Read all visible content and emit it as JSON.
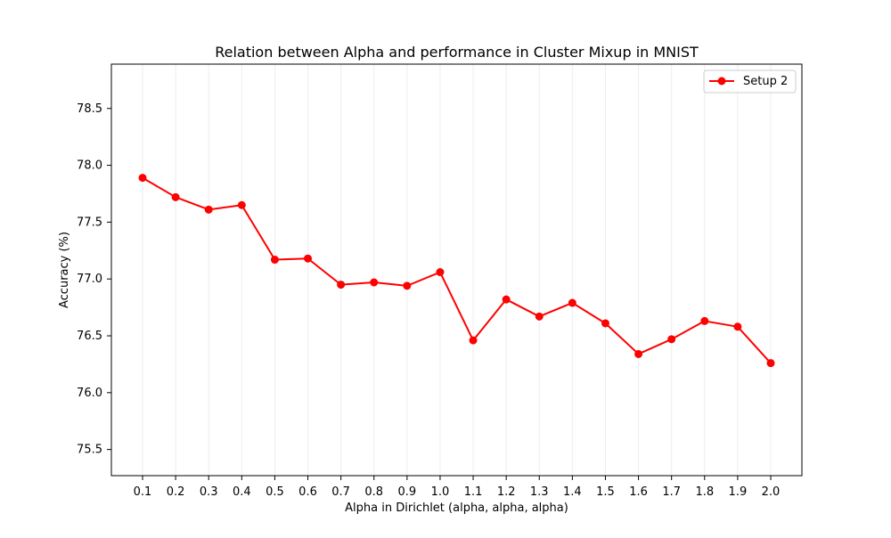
{
  "chart_data": {
    "type": "line",
    "title": "Relation between Alpha and performance in Cluster Mixup in MNIST",
    "xlabel": "Alpha in Dirichlet (alpha, alpha, alpha)",
    "ylabel": "Accuracy (%)",
    "categories": [
      "0.1",
      "0.2",
      "0.3",
      "0.4",
      "0.5",
      "0.6",
      "0.7",
      "0.8",
      "0.9",
      "1.0",
      "1.1",
      "1.2",
      "1.3",
      "1.4",
      "1.5",
      "1.6",
      "1.7",
      "1.8",
      "1.9",
      "2.0"
    ],
    "series": [
      {
        "name": "Setup 2",
        "color": "#ff0000",
        "values": [
          77.89,
          77.72,
          77.61,
          77.65,
          77.17,
          77.18,
          76.95,
          76.97,
          76.94,
          77.06,
          76.46,
          76.82,
          76.67,
          76.79,
          76.61,
          76.34,
          76.47,
          76.63,
          76.58,
          76.26
        ]
      }
    ],
    "yticks": [
      75.5,
      76.0,
      76.5,
      77.0,
      77.5,
      78.0,
      78.5
    ],
    "ylim": [
      75.27,
      78.89
    ],
    "grid": "vertical faint lines at each x category",
    "legend_position": "upper right"
  }
}
